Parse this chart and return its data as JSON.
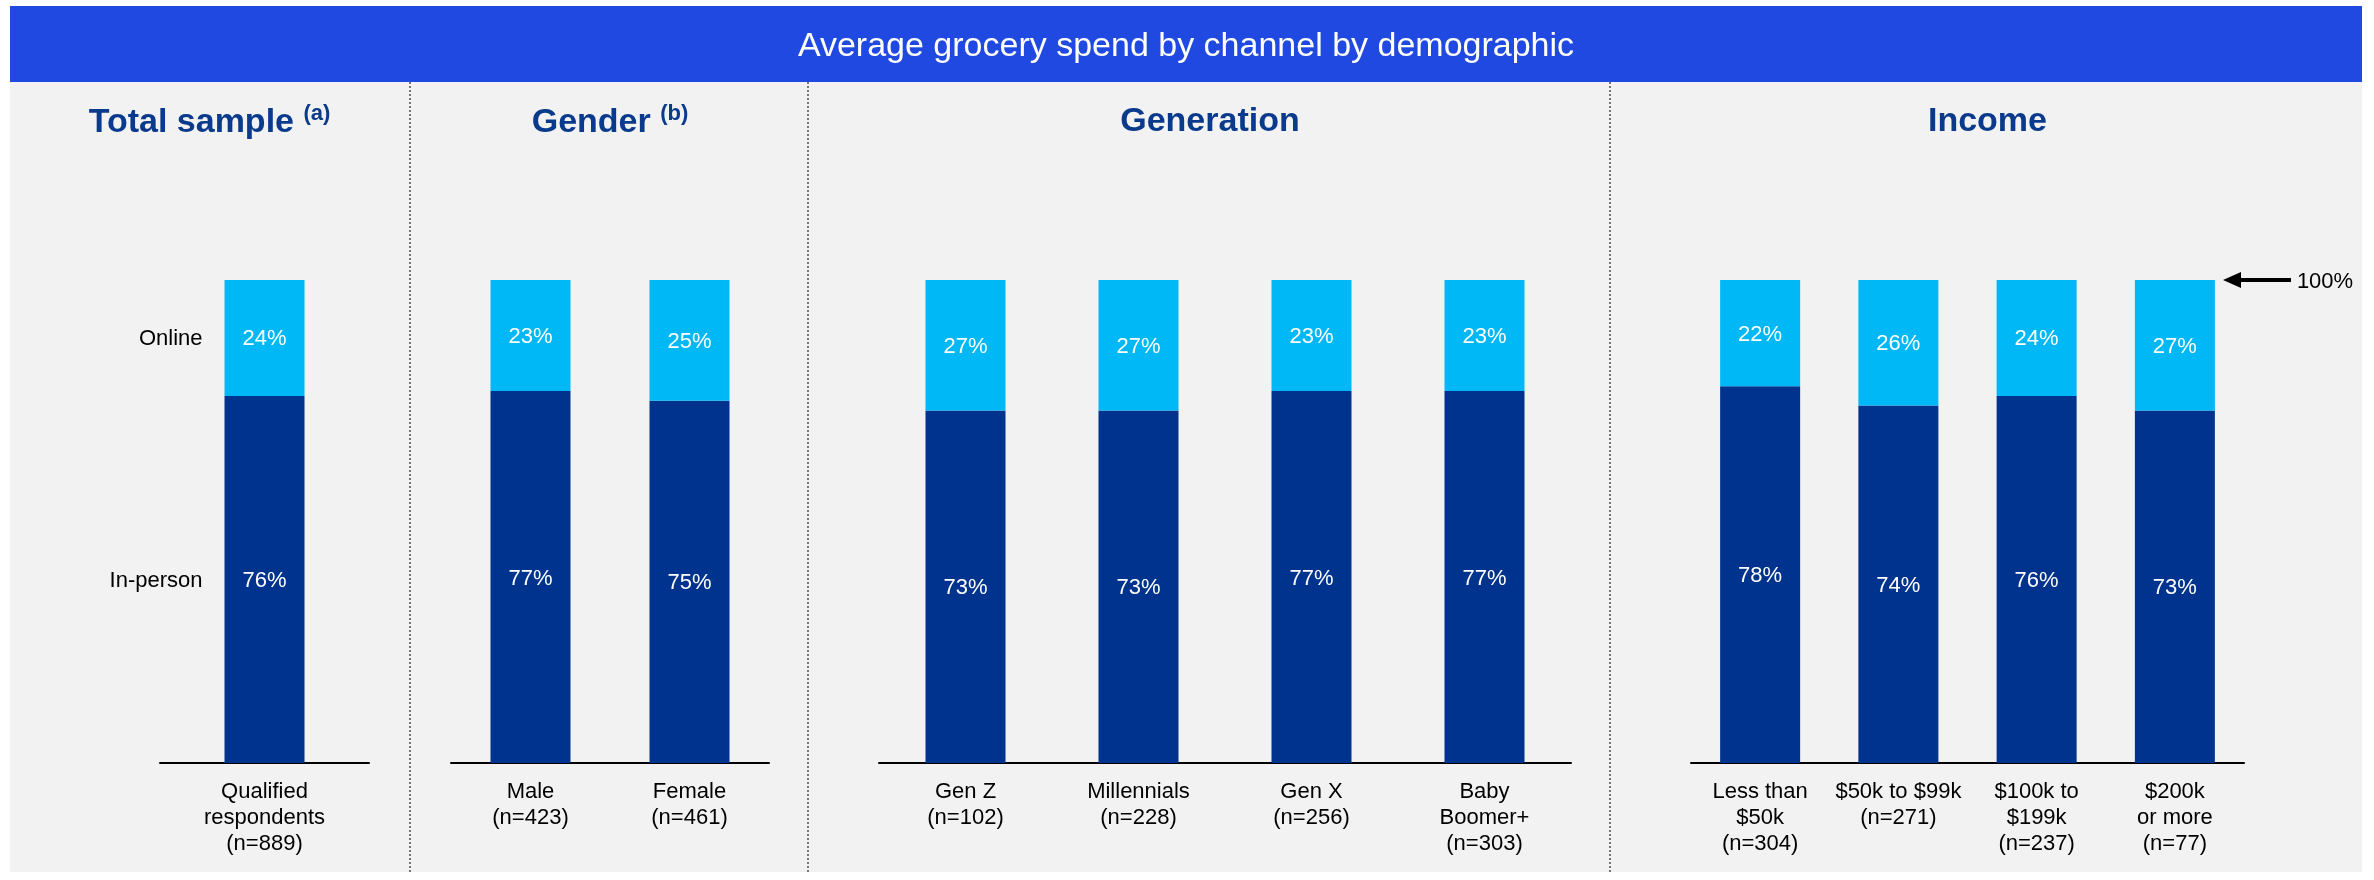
{
  "chart_data": [
    {
      "type": "other",
      "title": "Average grocery spend by channel by demographic"
    },
    {
      "type": "bar",
      "title": "Total sample $^{(a)}$",
      "categories": [
        "Qualified\nrespondents\n(n=889)"
      ],
      "stacked": true,
      "ylim": [
        0,
        100
      ],
      "tick_labels": "x",
      "series": [
        {
          "name": "In-person",
          "color": "#00338d",
          "values": [
            76
          ],
          "value_labels": [
            "76%"
          ]
        },
        {
          "name": "Online",
          "color": "#00b8f5",
          "values": [
            24
          ],
          "value_labels": [
            "24%"
          ]
        }
      ]
    },
    {
      "type": "bar",
      "title": "Gender $^{(b)}$",
      "categories": [
        "Male\n(n=423)",
        "Female\n(n=461)"
      ],
      "stacked": true,
      "ylim": [
        0,
        100
      ],
      "tick_labels": "x",
      "series": [
        {
          "color": "#00338d",
          "values": [
            77,
            75
          ],
          "value_labels": [
            "77%",
            "75%"
          ]
        },
        {
          "color": "#00b8f5",
          "values": [
            23,
            25
          ],
          "value_labels": [
            "23%",
            "25%"
          ]
        }
      ]
    },
    {
      "type": "bar",
      "title": "Generation",
      "categories": [
        "Gen Z\n(n=102)",
        "Millennials\n(n=228)",
        "Gen X\n(n=256)",
        "Baby\nBoomer+\n(n=303)"
      ],
      "stacked": true,
      "ylim": [
        0,
        100
      ],
      "tick_labels": "x",
      "series": [
        {
          "color": "#00338d",
          "values": [
            73,
            73,
            77,
            77
          ],
          "value_labels": [
            "73%",
            "73%",
            "77%",
            "77%"
          ]
        },
        {
          "color": "#00b8f5",
          "values": [
            27,
            27,
            23,
            23
          ],
          "value_labels": [
            "27%",
            "27%",
            "23%",
            "23%"
          ]
        }
      ]
    },
    {
      "type": "bar",
      "title": "Income",
      "categories": [
        "Less than\n$50k\n(n=304)",
        "$50k to $99k\n(n=271)",
        "$100k to\n$199k\n(n=237)",
        "$200k\nor more\n(n=77)"
      ],
      "stacked": true,
      "ylim": [
        0,
        100
      ],
      "tick_labels": "x",
      "annotations": [
        "100%"
      ],
      "series": [
        {
          "color": "#00338d",
          "values": [
            78,
            74,
            76,
            73
          ],
          "value_labels": [
            "78%",
            "74%",
            "76%",
            "73%"
          ]
        },
        {
          "color": "#00b8f5",
          "values": [
            22,
            26,
            24,
            27
          ],
          "value_labels": [
            "22%",
            "26%",
            "24%",
            "27%"
          ]
        }
      ]
    }
  ]
}
